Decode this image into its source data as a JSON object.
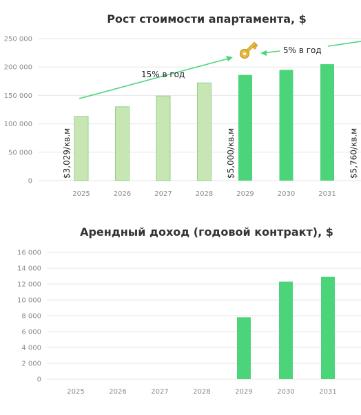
{
  "colors": {
    "bar_light": "#c7e6b3",
    "bar_light_stroke": "#8fd08a",
    "bar_strong": "#4cd47a",
    "trend_line": "#4cd47a",
    "key_icon": "#e8b935"
  },
  "chart_data": [
    {
      "type": "bar",
      "title": "Рост стоимости апартамента, $",
      "categories": [
        "2025",
        "2026",
        "2027",
        "2028",
        "2029",
        "2030",
        "2031"
      ],
      "values": [
        113000,
        130000,
        149000,
        172000,
        186000,
        195000,
        205000
      ],
      "bar_styles": [
        "light",
        "light",
        "light",
        "light",
        "strong",
        "strong",
        "strong"
      ],
      "ylim": [
        0,
        250000
      ],
      "yticks": [
        0,
        50000,
        100000,
        150000,
        200000,
        250000
      ],
      "ytick_labels": [
        "0",
        "50 000",
        "100 000",
        "150 000",
        "200 000",
        "250 000"
      ],
      "grid": true,
      "price_labels": [
        {
          "category": "2025",
          "text": "$3,029/кв.м"
        },
        {
          "category": "2029",
          "text": "$5,000/кв.м"
        },
        {
          "category": "2032",
          "text": "$5,760/кв.м"
        }
      ],
      "annotations": {
        "growth_early": "15% в год",
        "growth_late": "5% в год",
        "key_icon": "key-icon"
      }
    },
    {
      "type": "bar",
      "title": "Арендный доход (годовой контракт), $",
      "categories": [
        "2025",
        "2026",
        "2027",
        "2028",
        "2029",
        "2030",
        "2031"
      ],
      "values": [
        0,
        0,
        0,
        0,
        7800,
        12300,
        12900
      ],
      "ylim": [
        0,
        16000
      ],
      "yticks": [
        0,
        2000,
        4000,
        6000,
        8000,
        10000,
        12000,
        14000,
        16000
      ],
      "ytick_labels": [
        "0",
        "2 000",
        "4 000",
        "6 000",
        "8 000",
        "10 000",
        "12 000",
        "14 000",
        "16 000"
      ],
      "grid": true
    }
  ]
}
